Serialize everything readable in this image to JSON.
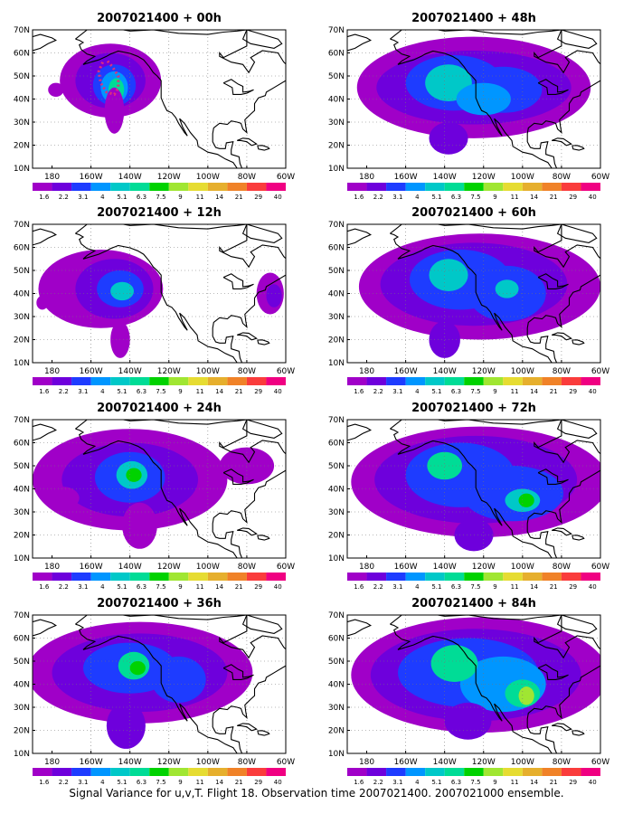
{
  "figure": {
    "caption": "Signal Variance for u,v,T. Flight 18. Observation time 2007021400. 2007021000 ensemble."
  },
  "axes": {
    "lat_labels": [
      "70N",
      "60N",
      "50N",
      "40N",
      "30N",
      "20N",
      "10N"
    ],
    "lon_labels": [
      "180",
      "160W",
      "140W",
      "120W",
      "100W",
      "80W",
      "60W"
    ]
  },
  "colorbar": {
    "labels": [
      "1.6",
      "2.2",
      "3.1",
      "4",
      "5.1",
      "6.3",
      "7.5",
      "9",
      "11",
      "14",
      "21",
      "29",
      "40"
    ],
    "colors": [
      "#A000C8",
      "#6E00DC",
      "#1E3CFF",
      "#0096FF",
      "#00C8C8",
      "#00DC96",
      "#00D200",
      "#A0E632",
      "#E6DC32",
      "#E6AF2D",
      "#F08228",
      "#FA3C3C",
      "#F00082"
    ]
  },
  "panels": [
    {
      "title": "2007021400 + 00h"
    },
    {
      "title": "2007021400 + 48h"
    },
    {
      "title": "2007021400 + 12h"
    },
    {
      "title": "2007021400 + 60h"
    },
    {
      "title": "2007021400 + 24h"
    },
    {
      "title": "2007021400 + 72h"
    },
    {
      "title": "2007021400 + 36h"
    },
    {
      "title": "2007021400 + 84h"
    }
  ],
  "annotations": {
    "flight_track_color": "#E0307A"
  }
}
